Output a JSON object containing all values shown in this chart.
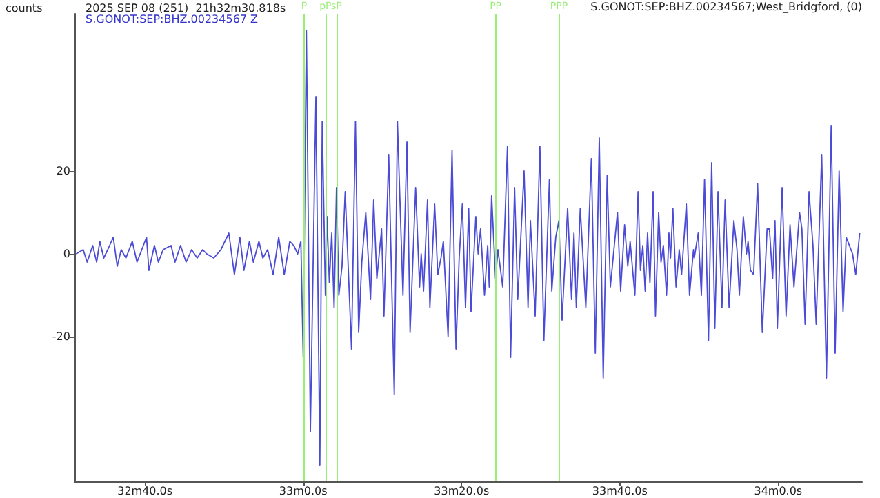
{
  "chart_data": {
    "type": "line",
    "title": "2025 SEP 08 (251)  21h32m30.818s",
    "subtitle": "S.GONOT:SEP:BHZ.00234567 Z",
    "ylabel": "counts",
    "annotations": [
      "S.GONOT:SEP:BHZ.00234567;West_Bridgford, (0)"
    ],
    "marker": "none",
    "line_style": "solid",
    "xlim": [
      "2025-09-08T21:32:31.1",
      "2025-09-08T21:34:10.6"
    ],
    "xticks": [
      {
        "value": "2025-09-08T21:32:40",
        "label": "32m40.0s"
      },
      {
        "value": "2025-09-08T21:33:00",
        "label": "33m0.0s"
      },
      {
        "value": "2025-09-08T21:33:20",
        "label": "33m20.0s"
      },
      {
        "value": "2025-09-08T21:33:40",
        "label": "33m40.0s"
      },
      {
        "value": "2025-09-08T21:34:00",
        "label": "34m0.0s"
      }
    ],
    "ylim": [
      -55,
      58
    ],
    "yticks": [
      -20,
      0,
      20
    ],
    "ref_lines": [
      {
        "axis": "x",
        "value": "2025-09-08T21:33:00.1",
        "label": "P",
        "color": "#99ee77"
      },
      {
        "axis": "x",
        "value": "2025-09-08T21:33:02.8",
        "label": "pP",
        "color": "#99ee77"
      },
      {
        "axis": "x",
        "value": "2025-09-08T21:33:04.2",
        "label": "sP",
        "color": "#99ee77"
      },
      {
        "axis": "x",
        "value": "2025-09-08T21:33:24.3",
        "label": "PP",
        "color": "#99ee77"
      },
      {
        "axis": "x",
        "value": "2025-09-08T21:33:32.3",
        "label": "PPP",
        "color": "#99ee77"
      }
    ],
    "series": [
      {
        "color": "#4b4bd6",
        "x": [
          "2025-09-08T21:32:31.3",
          "2025-09-08T21:32:32.2",
          "2025-09-08T21:32:32.7",
          "2025-09-08T21:32:33.4",
          "2025-09-08T21:32:33.9",
          "2025-09-08T21:32:34.3",
          "2025-09-08T21:32:34.8",
          "2025-09-08T21:32:35.3",
          "2025-09-08T21:32:36.0",
          "2025-09-08T21:32:36.5",
          "2025-09-08T21:32:37.0",
          "2025-09-08T21:32:37.6",
          "2025-09-08T21:32:38.4",
          "2025-09-08T21:32:39.0",
          "2025-09-08T21:32:40.2",
          "2025-09-08T21:32:40.5",
          "2025-09-08T21:32:41.2",
          "2025-09-08T21:32:41.7",
          "2025-09-08T21:32:42.3",
          "2025-09-08T21:32:43.3",
          "2025-09-08T21:32:43.8",
          "2025-09-08T21:32:44.5",
          "2025-09-08T21:32:45.2",
          "2025-09-08T21:32:45.9",
          "2025-09-08T21:32:46.6",
          "2025-09-08T21:32:47.3",
          "2025-09-08T21:32:47.8",
          "2025-09-08T21:32:48.7",
          "2025-09-08T21:32:49.6",
          "2025-09-08T21:32:50.6",
          "2025-09-08T21:32:51.3",
          "2025-09-08T21:32:52.0",
          "2025-09-08T21:32:52.5",
          "2025-09-08T21:32:53.2",
          "2025-09-08T21:32:53.7",
          "2025-09-08T21:32:54.4",
          "2025-09-08T21:32:54.9",
          "2025-09-08T21:32:55.5",
          "2025-09-08T21:32:56.2",
          "2025-09-08T21:32:56.9",
          "2025-09-08T21:32:57.6",
          "2025-09-08T21:32:58.3",
          "2025-09-08T21:32:58.8",
          "2025-09-08T21:32:59.3",
          "2025-09-08T21:32:59.7",
          "2025-09-08T21:33:00.0",
          "2025-09-08T21:33:00.4",
          "2025-09-08T21:33:00.9",
          "2025-09-08T21:33:01.6",
          "2025-09-08T21:33:02.1",
          "2025-09-08T21:33:02.4",
          "2025-09-08T21:33:02.8",
          "2025-09-08T21:33:03.0",
          "2025-09-08T21:33:03.3",
          "2025-09-08T21:33:03.6",
          "2025-09-08T21:33:03.9",
          "2025-09-08T21:33:04.2",
          "2025-09-08T21:33:04.5",
          "2025-09-08T21:33:04.9",
          "2025-09-08T21:33:05.3",
          "2025-09-08T21:33:06.1",
          "2025-09-08T21:33:06.6",
          "2025-09-08T21:33:07.0",
          "2025-09-08T21:33:07.4",
          "2025-09-08T21:33:07.9",
          "2025-09-08T21:33:08.5",
          "2025-09-08T21:33:08.9",
          "2025-09-08T21:33:09.3",
          "2025-09-08T21:33:09.9",
          "2025-09-08T21:33:10.2",
          "2025-09-08T21:33:10.8",
          "2025-09-08T21:33:11.5",
          "2025-09-08T21:33:11.9",
          "2025-09-08T21:33:12.6",
          "2025-09-08T21:33:13.1",
          "2025-09-08T21:33:13.5",
          "2025-09-08T21:33:14.2",
          "2025-09-08T21:33:14.7",
          "2025-09-08T21:33:14.9",
          "2025-09-08T21:33:15.2",
          "2025-09-08T21:33:15.7",
          "2025-09-08T21:33:16.0",
          "2025-09-08T21:33:16.6",
          "2025-09-08T21:33:17.0",
          "2025-09-08T21:33:17.4",
          "2025-09-08T21:33:17.7",
          "2025-09-08T21:33:18.3",
          "2025-09-08T21:33:18.8",
          "2025-09-08T21:33:19.3",
          "2025-09-08T21:33:19.7",
          "2025-09-08T21:33:20.1",
          "2025-09-08T21:33:20.5",
          "2025-09-08T21:33:20.9",
          "2025-09-08T21:33:21.2",
          "2025-09-08T21:33:21.8",
          "2025-09-08T21:33:22.1",
          "2025-09-08T21:33:22.4",
          "2025-09-08T21:33:22.9",
          "2025-09-08T21:33:23.3",
          "2025-09-08T21:33:23.5",
          "2025-09-08T21:33:23.8",
          "2025-09-08T21:33:24.3",
          "2025-09-08T21:33:24.6",
          "2025-09-08T21:33:25.2",
          "2025-09-08T21:33:25.8",
          "2025-09-08T21:33:26.2",
          "2025-09-08T21:33:26.7",
          "2025-09-08T21:33:27.1",
          "2025-09-08T21:33:27.9",
          "2025-09-08T21:33:28.4",
          "2025-09-08T21:33:28.7",
          "2025-09-08T21:33:29.3",
          "2025-09-08T21:33:29.9",
          "2025-09-08T21:33:30.4",
          "2025-09-08T21:33:31.1",
          "2025-09-08T21:33:31.4",
          "2025-09-08T21:33:31.9",
          "2025-09-08T21:33:32.3",
          "2025-09-08T21:33:32.7",
          "2025-09-08T21:33:33.4",
          "2025-09-08T21:33:33.9",
          "2025-09-08T21:33:34.2",
          "2025-09-08T21:33:34.5",
          "2025-09-08T21:33:35.0",
          "2025-09-08T21:33:35.7",
          "2025-09-08T21:33:36.4",
          "2025-09-08T21:33:36.9",
          "2025-09-08T21:33:37.4",
          "2025-09-08T21:33:37.9",
          "2025-09-08T21:33:38.4",
          "2025-09-08T21:33:38.8",
          "2025-09-08T21:33:39.7",
          "2025-09-08T21:33:40.1",
          "2025-09-08T21:33:40.6",
          "2025-09-08T21:33:41.0",
          "2025-09-08T21:33:41.3",
          "2025-09-08T21:33:41.9",
          "2025-09-08T21:33:42.3",
          "2025-09-08T21:33:42.6",
          "2025-09-08T21:33:42.9",
          "2025-09-08T21:33:43.2",
          "2025-09-08T21:33:43.5",
          "2025-09-08T21:33:43.8",
          "2025-09-08T21:33:44.2",
          "2025-09-08T21:33:44.5",
          "2025-09-08T21:33:44.9",
          "2025-09-08T21:33:45.2",
          "2025-09-08T21:33:45.5",
          "2025-09-08T21:33:45.9",
          "2025-09-08T21:33:46.2",
          "2025-09-08T21:33:46.4",
          "2025-09-08T21:33:46.7",
          "2025-09-08T21:33:47.1",
          "2025-09-08T21:33:47.5",
          "2025-09-08T21:33:47.8",
          "2025-09-08T21:33:48.4",
          "2025-09-08T21:33:48.8",
          "2025-09-08T21:33:49.3",
          "2025-09-08T21:33:49.4",
          "2025-09-08T21:33:49.9",
          "2025-09-08T21:33:50.3",
          "2025-09-08T21:33:50.7",
          "2025-09-08T21:33:51.2",
          "2025-09-08T21:33:51.6",
          "2025-09-08T21:33:52.0",
          "2025-09-08T21:33:52.4",
          "2025-09-08T21:33:52.9",
          "2025-09-08T21:33:53.3",
          "2025-09-08T21:33:53.8",
          "2025-09-08T21:33:54.4",
          "2025-09-08T21:33:54.8",
          "2025-09-08T21:33:55.1",
          "2025-09-08T21:33:55.6",
          "2025-09-08T21:33:56.0",
          "2025-09-08T21:33:56.2",
          "2025-09-08T21:33:56.5",
          "2025-09-08T21:33:56.9",
          "2025-09-08T21:33:57.4",
          "2025-09-08T21:33:58.0",
          "2025-09-08T21:33:58.6",
          "2025-09-08T21:33:58.9",
          "2025-09-08T21:33:59.3",
          "2025-09-08T21:33:59.6",
          "2025-09-08T21:33:59.9",
          "2025-09-08T21:34:00.5",
          "2025-09-08T21:34:01.0",
          "2025-09-08T21:34:01.5",
          "2025-09-08T21:34:02.0",
          "2025-09-08T21:34:02.7",
          "2025-09-08T21:34:03.0",
          "2025-09-08T21:34:03.4",
          "2025-09-08T21:34:03.9",
          "2025-09-08T21:34:04.4",
          "2025-09-08T21:34:04.8",
          "2025-09-08T21:34:05.5",
          "2025-09-08T21:34:06.1",
          "2025-09-08T21:34:06.7",
          "2025-09-08T21:34:07.2",
          "2025-09-08T21:34:07.7",
          "2025-09-08T21:34:08.2",
          "2025-09-08T21:34:08.6",
          "2025-09-08T21:34:09.0",
          "2025-09-08T21:34:09.4",
          "2025-09-08T21:34:09.8",
          "2025-09-08T21:34:10.3"
        ],
        "values": [
          0,
          1,
          -2,
          2,
          -2,
          3,
          -1,
          1,
          4,
          -3,
          1,
          -1,
          3,
          -2,
          4,
          -4,
          2,
          -2,
          1,
          2,
          -2,
          2,
          -2,
          1,
          -1,
          1,
          0,
          -1,
          1,
          5,
          -5,
          4,
          -4,
          3,
          -2,
          3,
          -1,
          1,
          -5,
          4,
          -5,
          3,
          2,
          0,
          3,
          -25,
          54,
          -43,
          38,
          -51,
          32,
          -10,
          9,
          -7,
          5,
          -13,
          16,
          -10,
          -3,
          15,
          -23,
          32,
          -19,
          -2,
          10,
          -11,
          13,
          -6,
          6,
          -15,
          24,
          -34,
          32,
          -10,
          27,
          -19,
          16,
          -8,
          0,
          -9,
          13,
          -13,
          12,
          -5,
          -1,
          3,
          -20,
          25,
          -23,
          -1,
          12,
          -13,
          11,
          -14,
          9,
          0,
          6,
          -10,
          2,
          -8,
          14,
          -6,
          1,
          -8,
          26,
          -25,
          16,
          -11,
          20,
          -13,
          8,
          -15,
          26,
          -21,
          18,
          -9,
          4,
          8,
          -16,
          11,
          -11,
          5,
          -13,
          11,
          -13,
          23,
          -24,
          28,
          -30,
          19,
          -8,
          10,
          -9,
          7,
          -3,
          3,
          -10,
          15,
          -4,
          2,
          -9,
          5,
          -7,
          15,
          -15,
          10,
          -2,
          2,
          -10,
          5,
          -1,
          11,
          -8,
          1,
          -5,
          12,
          -10,
          1,
          -1,
          5,
          -10,
          18,
          -21,
          22,
          -18,
          15,
          -13,
          13,
          -13,
          8,
          1,
          -10,
          9,
          0,
          3,
          -4,
          -5,
          17,
          -19,
          6,
          6,
          -6,
          8,
          -18,
          16,
          -15,
          7,
          -8,
          10,
          6,
          -17,
          15,
          2,
          -17,
          24,
          -30,
          31,
          -24,
          20,
          -14,
          4,
          2,
          0,
          -5,
          5
        ]
      }
    ]
  }
}
